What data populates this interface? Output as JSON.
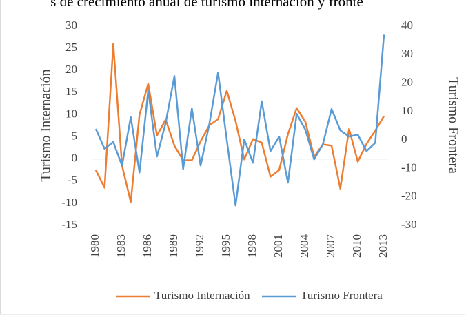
{
  "chart_data": {
    "type": "line",
    "title": "s de crecimiento anual de turismo internación y fronte",
    "y_label": "Turismo Internación",
    "y2_label": "Turismo Frontera",
    "categories": [
      "1980",
      null,
      null,
      "1983",
      null,
      null,
      "1986",
      null,
      null,
      "1989",
      null,
      null,
      "1992",
      null,
      null,
      "1995",
      null,
      null,
      "1998",
      null,
      null,
      "2001",
      null,
      null,
      "2004",
      null,
      null,
      "2007",
      null,
      null,
      "2010",
      null,
      null,
      "2013"
    ],
    "series": [
      {
        "name": "Turismo Internación",
        "color": "#ed7d31",
        "values": [
          -2.5,
          -6.5,
          26,
          -1.5,
          -9.7,
          10,
          17,
          5.3,
          8.9,
          3,
          -0.3,
          -0.3,
          4,
          7.6,
          9,
          15.4,
          8.6,
          -0.1,
          4.5,
          3.7,
          -4,
          -2.5,
          5.6,
          11.5,
          8.4,
          0.5,
          3.3,
          3,
          -6.7,
          6.8,
          -0.6,
          3.4,
          6.4,
          9.7
        ]
      },
      {
        "name": "Turismo Frontera",
        "color": "#5b9bd5",
        "axis": "y2",
        "values": [
          3.9,
          -3.1,
          -0.7,
          -9,
          8,
          -11.4,
          17.4,
          -5.8,
          6,
          22.5,
          -10.2,
          11.1,
          -9,
          5.6,
          23.7,
          0,
          -23,
          0.2,
          -8,
          13.6,
          -3.9,
          1.2,
          -15,
          9.2,
          3.6,
          -6.8,
          -1.5,
          10.9,
          3.4,
          1.2,
          1.9,
          -3.9,
          -1,
          37
        ]
      }
    ],
    "ylim": [
      -15,
      30
    ],
    "yticks": [
      -15,
      -10,
      -5,
      0,
      5,
      10,
      15,
      20,
      25,
      30
    ],
    "y2lim": [
      -30,
      40
    ],
    "y2ticks": [
      -30,
      -20,
      -10,
      0,
      10,
      20,
      30,
      40
    ],
    "legend": "bottom"
  }
}
